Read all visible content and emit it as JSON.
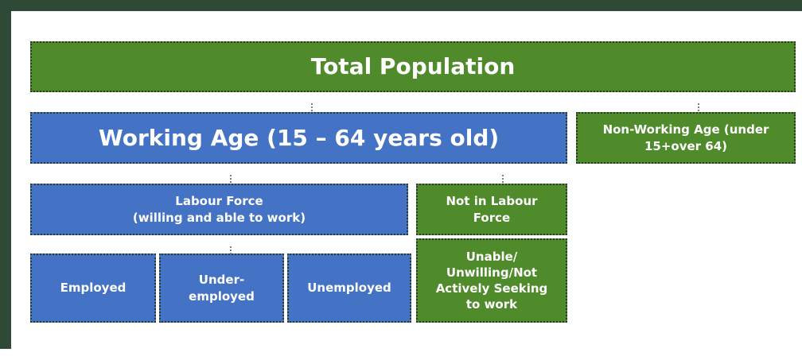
{
  "nodes": [
    {
      "label": "Total Population"
    },
    {
      "label": "Working Age (15 – 64 years old)"
    },
    {
      "label": "Non-Working Age (under 15+over 64)"
    },
    {
      "label": "Labour Force\n(willing and able to work)"
    },
    {
      "label": "Not in Labour Force"
    },
    {
      "label": "Employed"
    },
    {
      "label": "Under-\nemployed"
    },
    {
      "label": "Unemployed"
    },
    {
      "label": "Unable/\nUnwilling/Not\nActively Seeking\nto work"
    }
  ]
}
